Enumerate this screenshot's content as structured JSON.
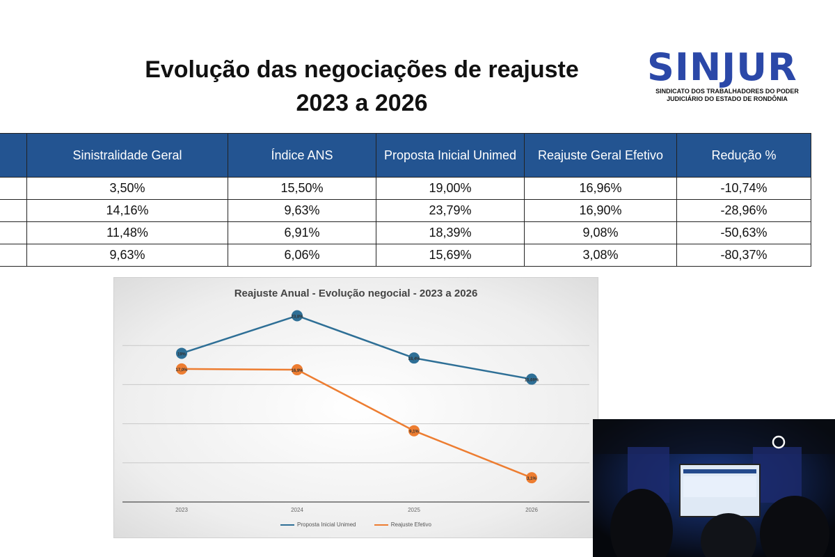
{
  "title": {
    "line1": "Evolução das negociações de reajuste",
    "line2": "2023 a 2026"
  },
  "logo": {
    "name": "SINJUR",
    "subtitle_line1": "SINDICATO DOS TRABALHADORES DO PODER",
    "subtitle_line2": "JUDICIÁRIO DO ESTADO DE RONDÔNIA"
  },
  "table": {
    "headers": [
      "",
      "Sinistralidade Geral",
      "Índice ANS",
      "Proposta Inicial Unimed",
      "Reajuste Geral Efetivo",
      "Redução %"
    ],
    "rows": [
      [
        "",
        "3,50%",
        "15,50%",
        "19,00%",
        "16,96%",
        "-10,74%"
      ],
      [
        "",
        "14,16%",
        "9,63%",
        "23,79%",
        "16,90%",
        "-28,96%"
      ],
      [
        "",
        "11,48%",
        "6,91%",
        "18,39%",
        "9,08%",
        "-50,63%"
      ],
      [
        "",
        "9,63%",
        "6,06%",
        "15,69%",
        "3,08%",
        "-80,37%"
      ]
    ]
  },
  "chart_data": {
    "type": "line",
    "title": "Reajuste Anual - Evolução negocial - 2023 a 2026",
    "categories": [
      "2023",
      "2024",
      "2025",
      "2026"
    ],
    "series": [
      {
        "name": "Proposta Inicial Unimed",
        "values": [
          19.0,
          23.8,
          18.4,
          15.7
        ],
        "labels": [
          "19%",
          "23,8%",
          "18,4%",
          "15,69%"
        ],
        "color": "#2e6f96"
      },
      {
        "name": "Reajuste Efetivo",
        "values": [
          17.0,
          16.9,
          9.1,
          3.1
        ],
        "labels": [
          "17,0%",
          "16,9%",
          "9,1%",
          "3,1%"
        ],
        "color": "#ed7d31"
      }
    ],
    "ylim": [
      0,
      25
    ],
    "grid": true,
    "legend_position": "bottom"
  },
  "video_overlay": {
    "visible": true
  }
}
